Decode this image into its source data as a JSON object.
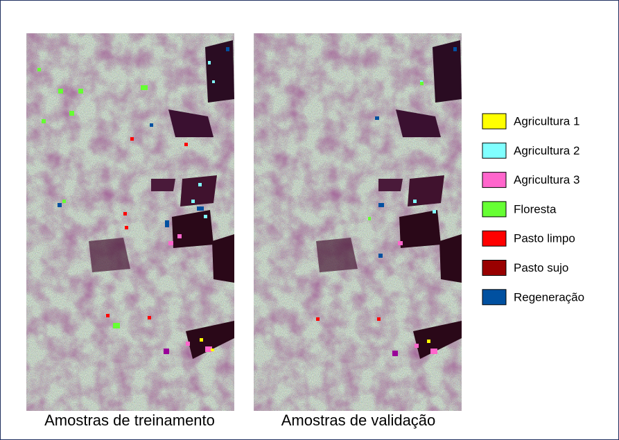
{
  "panels": [
    {
      "caption": "Amostras de treinamento"
    },
    {
      "caption": "Amostras de validação"
    }
  ],
  "legend": {
    "items": [
      {
        "label": "Agricultura 1",
        "color": "#ffff00"
      },
      {
        "label": "Agricultura 2",
        "color": "#80ffff"
      },
      {
        "label": "Agricultura 3",
        "color": "#ff66cc"
      },
      {
        "label": "Floresta",
        "color": "#66ff33"
      },
      {
        "label": "Pasto limpo",
        "color": "#ff0000"
      },
      {
        "label": "Pasto sujo",
        "color": "#990000"
      },
      {
        "label": "Regeneração",
        "color": "#0050a0"
      }
    ]
  }
}
